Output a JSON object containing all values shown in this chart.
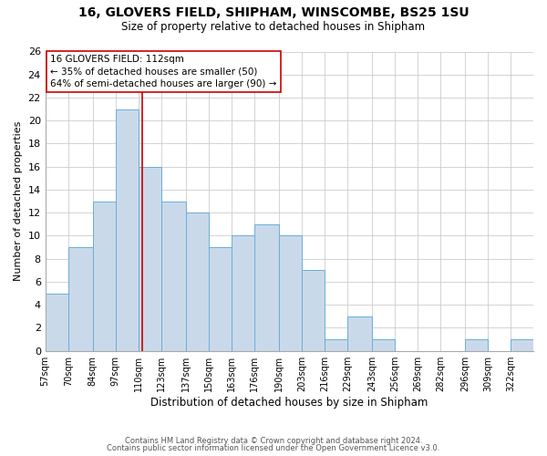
{
  "title": "16, GLOVERS FIELD, SHIPHAM, WINSCOMBE, BS25 1SU",
  "subtitle": "Size of property relative to detached houses in Shipham",
  "xlabel": "Distribution of detached houses by size in Shipham",
  "ylabel": "Number of detached properties",
  "bin_labels": [
    "57sqm",
    "70sqm",
    "84sqm",
    "97sqm",
    "110sqm",
    "123sqm",
    "137sqm",
    "150sqm",
    "163sqm",
    "176sqm",
    "190sqm",
    "203sqm",
    "216sqm",
    "229sqm",
    "243sqm",
    "256sqm",
    "269sqm",
    "282sqm",
    "296sqm",
    "309sqm",
    "322sqm"
  ],
  "bin_edges": [
    57,
    70,
    84,
    97,
    110,
    123,
    137,
    150,
    163,
    176,
    190,
    203,
    216,
    229,
    243,
    256,
    269,
    282,
    296,
    309,
    322,
    335
  ],
  "counts": [
    5,
    9,
    13,
    21,
    16,
    13,
    12,
    9,
    10,
    11,
    10,
    7,
    1,
    3,
    1,
    0,
    0,
    0,
    1,
    0,
    1
  ],
  "bar_color": "#c9d9ea",
  "bar_edge_color": "#6aaed6",
  "vline_color": "#cc0000",
  "vline_x": 112,
  "annotation_title": "16 GLOVERS FIELD: 112sqm",
  "annotation_line1": "← 35% of detached houses are smaller (50)",
  "annotation_line2": "64% of semi-detached houses are larger (90) →",
  "annotation_box_facecolor": "#ffffff",
  "annotation_box_edgecolor": "#cc0000",
  "ylim": [
    0,
    26
  ],
  "yticks": [
    0,
    2,
    4,
    6,
    8,
    10,
    12,
    14,
    16,
    18,
    20,
    22,
    24,
    26
  ],
  "footer1": "Contains HM Land Registry data © Crown copyright and database right 2024.",
  "footer2": "Contains public sector information licensed under the Open Government Licence v3.0.",
  "background_color": "#ffffff",
  "grid_color": "#cccccc"
}
